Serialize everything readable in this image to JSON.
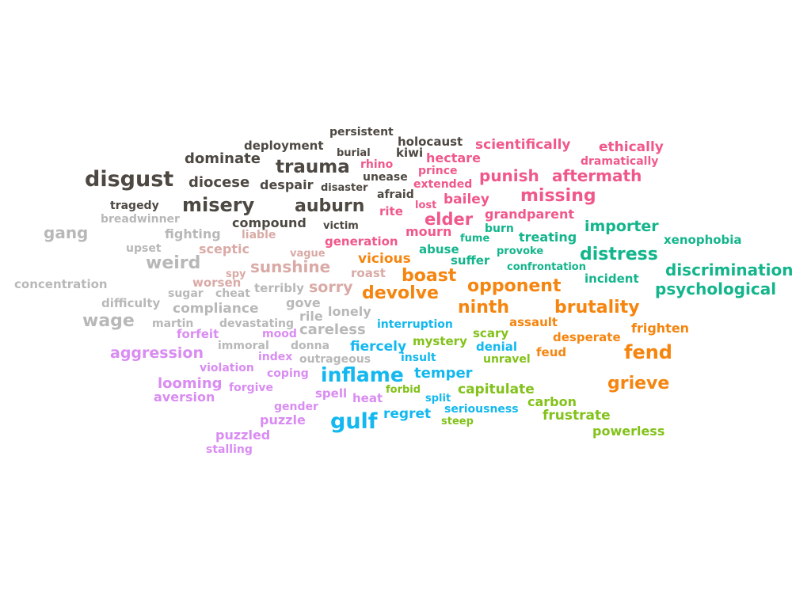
{
  "palette": {
    "dark": "#4d4842",
    "light_gray": "#b8b8b8",
    "dusty_rose": "#d9aaa6",
    "pink": "#f0588a",
    "orange": "#f5850f",
    "teal": "#13b58c",
    "cyan": "#12b8ef",
    "green": "#82c21a",
    "violet": "#d98cf2"
  },
  "words": [
    {
      "text": "persistent",
      "group": "dark"
    },
    {
      "text": "holocaust",
      "group": "dark"
    },
    {
      "text": "deployment",
      "group": "dark"
    },
    {
      "text": "burial",
      "group": "dark"
    },
    {
      "text": "kiwi",
      "group": "dark"
    },
    {
      "text": "dominate",
      "group": "dark"
    },
    {
      "text": "trauma",
      "group": "dark"
    },
    {
      "text": "unease",
      "group": "dark"
    },
    {
      "text": "disgust",
      "group": "dark"
    },
    {
      "text": "diocese",
      "group": "dark"
    },
    {
      "text": "despair",
      "group": "dark"
    },
    {
      "text": "disaster",
      "group": "dark"
    },
    {
      "text": "afraid",
      "group": "dark"
    },
    {
      "text": "tragedy",
      "group": "dark"
    },
    {
      "text": "misery",
      "group": "dark"
    },
    {
      "text": "auburn",
      "group": "dark"
    },
    {
      "text": "compound",
      "group": "dark"
    },
    {
      "text": "victim",
      "group": "dark"
    },
    {
      "text": "breadwinner",
      "group": "light_gray"
    },
    {
      "text": "gang",
      "group": "light_gray"
    },
    {
      "text": "fighting",
      "group": "light_gray"
    },
    {
      "text": "upset",
      "group": "light_gray"
    },
    {
      "text": "weird",
      "group": "light_gray"
    },
    {
      "text": "concentration",
      "group": "light_gray"
    },
    {
      "text": "terribly",
      "group": "light_gray"
    },
    {
      "text": "sugar",
      "group": "light_gray"
    },
    {
      "text": "cheat",
      "group": "light_gray"
    },
    {
      "text": "difficulty",
      "group": "light_gray"
    },
    {
      "text": "compliance",
      "group": "light_gray"
    },
    {
      "text": "gove",
      "group": "light_gray"
    },
    {
      "text": "lonely",
      "group": "light_gray"
    },
    {
      "text": "rile",
      "group": "light_gray"
    },
    {
      "text": "wage",
      "group": "light_gray"
    },
    {
      "text": "martin",
      "group": "light_gray"
    },
    {
      "text": "devastating",
      "group": "light_gray"
    },
    {
      "text": "careless",
      "group": "light_gray"
    },
    {
      "text": "immoral",
      "group": "light_gray"
    },
    {
      "text": "donna",
      "group": "light_gray"
    },
    {
      "text": "outrageous",
      "group": "light_gray"
    },
    {
      "text": "liable",
      "group": "dusty_rose"
    },
    {
      "text": "sceptic",
      "group": "dusty_rose"
    },
    {
      "text": "vague",
      "group": "dusty_rose"
    },
    {
      "text": "sunshine",
      "group": "dusty_rose"
    },
    {
      "text": "spy",
      "group": "dusty_rose"
    },
    {
      "text": "roast",
      "group": "dusty_rose"
    },
    {
      "text": "worsen",
      "group": "dusty_rose"
    },
    {
      "text": "sorry",
      "group": "dusty_rose"
    },
    {
      "text": "scientifically",
      "group": "pink"
    },
    {
      "text": "ethically",
      "group": "pink"
    },
    {
      "text": "hectare",
      "group": "pink"
    },
    {
      "text": "rhino",
      "group": "pink"
    },
    {
      "text": "dramatically",
      "group": "pink"
    },
    {
      "text": "prince",
      "group": "pink"
    },
    {
      "text": "punish",
      "group": "pink"
    },
    {
      "text": "aftermath",
      "group": "pink"
    },
    {
      "text": "extended",
      "group": "pink"
    },
    {
      "text": "missing",
      "group": "pink"
    },
    {
      "text": "bailey",
      "group": "pink"
    },
    {
      "text": "lost",
      "group": "pink"
    },
    {
      "text": "rite",
      "group": "pink"
    },
    {
      "text": "elder",
      "group": "pink"
    },
    {
      "text": "grandparent",
      "group": "pink"
    },
    {
      "text": "mourn",
      "group": "pink"
    },
    {
      "text": "generation",
      "group": "pink"
    },
    {
      "text": "vicious",
      "group": "orange"
    },
    {
      "text": "boast",
      "group": "orange"
    },
    {
      "text": "opponent",
      "group": "orange"
    },
    {
      "text": "devolve",
      "group": "orange"
    },
    {
      "text": "ninth",
      "group": "orange"
    },
    {
      "text": "brutality",
      "group": "orange"
    },
    {
      "text": "assault",
      "group": "orange"
    },
    {
      "text": "frighten",
      "group": "orange"
    },
    {
      "text": "desperate",
      "group": "orange"
    },
    {
      "text": "feud",
      "group": "orange"
    },
    {
      "text": "fend",
      "group": "orange"
    },
    {
      "text": "grieve",
      "group": "orange"
    },
    {
      "text": "burn",
      "group": "teal"
    },
    {
      "text": "importer",
      "group": "teal"
    },
    {
      "text": "fume",
      "group": "teal"
    },
    {
      "text": "treating",
      "group": "teal"
    },
    {
      "text": "xenophobia",
      "group": "teal"
    },
    {
      "text": "abuse",
      "group": "teal"
    },
    {
      "text": "provoke",
      "group": "teal"
    },
    {
      "text": "distress",
      "group": "teal"
    },
    {
      "text": "suffer",
      "group": "teal"
    },
    {
      "text": "confrontation",
      "group": "teal"
    },
    {
      "text": "discrimination",
      "group": "teal"
    },
    {
      "text": "incident",
      "group": "teal"
    },
    {
      "text": "psychological",
      "group": "teal"
    },
    {
      "text": "interruption",
      "group": "cyan"
    },
    {
      "text": "fiercely",
      "group": "cyan"
    },
    {
      "text": "denial",
      "group": "cyan"
    },
    {
      "text": "insult",
      "group": "cyan"
    },
    {
      "text": "inflame",
      "group": "cyan"
    },
    {
      "text": "temper",
      "group": "cyan"
    },
    {
      "text": "split",
      "group": "cyan"
    },
    {
      "text": "regret",
      "group": "cyan"
    },
    {
      "text": "seriousness",
      "group": "cyan"
    },
    {
      "text": "gulf",
      "group": "cyan"
    },
    {
      "text": "scary",
      "group": "green"
    },
    {
      "text": "mystery",
      "group": "green"
    },
    {
      "text": "unravel",
      "group": "green"
    },
    {
      "text": "forbid",
      "group": "green"
    },
    {
      "text": "capitulate",
      "group": "green"
    },
    {
      "text": "carbon",
      "group": "green"
    },
    {
      "text": "frustrate",
      "group": "green"
    },
    {
      "text": "steep",
      "group": "green"
    },
    {
      "text": "powerless",
      "group": "green"
    },
    {
      "text": "forfeit",
      "group": "violet"
    },
    {
      "text": "mood",
      "group": "violet"
    },
    {
      "text": "aggression",
      "group": "violet"
    },
    {
      "text": "index",
      "group": "violet"
    },
    {
      "text": "violation",
      "group": "violet"
    },
    {
      "text": "coping",
      "group": "violet"
    },
    {
      "text": "looming",
      "group": "violet"
    },
    {
      "text": "forgive",
      "group": "violet"
    },
    {
      "text": "aversion",
      "group": "violet"
    },
    {
      "text": "spell",
      "group": "violet"
    },
    {
      "text": "heat",
      "group": "violet"
    },
    {
      "text": "gender",
      "group": "violet"
    },
    {
      "text": "puzzle",
      "group": "violet"
    },
    {
      "text": "puzzled",
      "group": "violet"
    },
    {
      "text": "stalling",
      "group": "violet"
    }
  ]
}
